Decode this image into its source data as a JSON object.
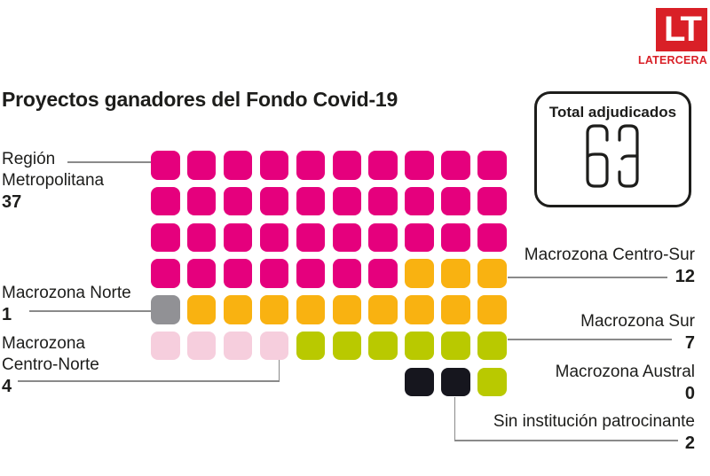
{
  "brand": {
    "logo_text": "LT",
    "logo_caption": "LATERCERA",
    "red": "#d92027"
  },
  "title": "Proyectos ganadores del Fondo Covid-19",
  "total_box": {
    "label": "Total adjudicados",
    "value": "63"
  },
  "chart_data": {
    "type": "waffle",
    "title": "Proyectos ganadores del Fondo Covid-19",
    "total_label": "Total adjudicados",
    "total": 63,
    "columns": 10,
    "categories": [
      {
        "name": "Región Metropolitana",
        "value": 37,
        "color": "#e5007d"
      },
      {
        "name": "Macrozona Norte",
        "value": 1,
        "color": "#919195"
      },
      {
        "name": "Macrozona Centro-Norte",
        "value": 4,
        "color": "#f6cedd"
      },
      {
        "name": "Macrozona Centro-Sur",
        "value": 12,
        "color": "#f9b211"
      },
      {
        "name": "Macrozona Sur",
        "value": 7,
        "color": "#b9c900"
      },
      {
        "name": "Macrozona Austral",
        "value": 0,
        "color": null
      },
      {
        "name": "Sin institución patrocinante",
        "value": 2,
        "color": "#16161e"
      }
    ],
    "color_key": {
      "RM": "#e5007d",
      "N": "#919195",
      "CN": "#f6cedd",
      "CS": "#f9b211",
      "S": "#b9c900",
      "SIN": "#16161e"
    },
    "rows": [
      [
        "RM",
        "RM",
        "RM",
        "RM",
        "RM",
        "RM",
        "RM",
        "RM",
        "RM",
        "RM"
      ],
      [
        "RM",
        "RM",
        "RM",
        "RM",
        "RM",
        "RM",
        "RM",
        "RM",
        "RM",
        "RM"
      ],
      [
        "RM",
        "RM",
        "RM",
        "RM",
        "RM",
        "RM",
        "RM",
        "RM",
        "RM",
        "RM"
      ],
      [
        "RM",
        "RM",
        "RM",
        "RM",
        "RM",
        "RM",
        "RM",
        "CS",
        "CS",
        "CS"
      ],
      [
        "N",
        "CS",
        "CS",
        "CS",
        "CS",
        "CS",
        "CS",
        "CS",
        "CS",
        "CS"
      ],
      [
        "CN",
        "CN",
        "CN",
        "CN",
        "S",
        "S",
        "S",
        "S",
        "S",
        "S"
      ],
      [
        null,
        null,
        null,
        null,
        null,
        null,
        null,
        "SIN",
        "SIN",
        "S"
      ]
    ]
  },
  "labels": {
    "region_metropolitana": {
      "line1": "Región",
      "line2": "Metropolitana",
      "value": "37"
    },
    "macrozona_norte": {
      "line1": "Macrozona Norte",
      "value": "1"
    },
    "macrozona_centro_norte": {
      "line1": "Macrozona",
      "line2": "Centro-Norte",
      "value": "4"
    },
    "macrozona_centro_sur": {
      "line1": "Macrozona Centro-Sur",
      "value": "12"
    },
    "macrozona_sur": {
      "line1": "Macrozona Sur",
      "value": "7"
    },
    "macrozona_austral": {
      "line1": "Macrozona Austral",
      "value": "0"
    },
    "sin_institucion": {
      "line1": "Sin institución patrocinante",
      "value": "2"
    }
  }
}
